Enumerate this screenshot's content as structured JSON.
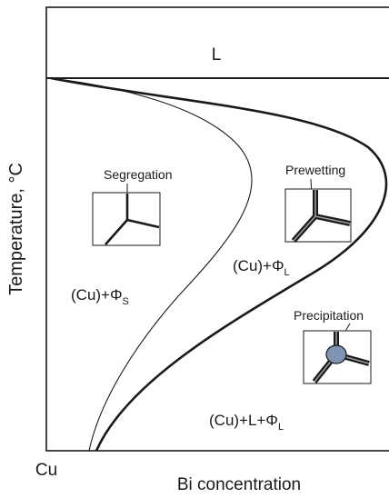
{
  "axes": {
    "y_label": "Temperature, °C",
    "x_label": "Bi concentration",
    "origin_label": "Cu"
  },
  "regions": {
    "liquid": "L",
    "cu_phi_s": {
      "base": "(Cu)+Φ",
      "sub": "S"
    },
    "cu_phi_l": {
      "base": "(Cu)+Φ",
      "sub": "L"
    },
    "cu_l_phi_l": {
      "base": "(Cu)+L+Φ",
      "sub": "L"
    }
  },
  "insets": {
    "segregation": "Segregation",
    "prewetting": "Prewetting",
    "precipitation": "Precipitation"
  },
  "colors": {
    "line": "#1a1a1a",
    "precipitate_fill": "#7f93b3",
    "background": "#ffffff"
  }
}
